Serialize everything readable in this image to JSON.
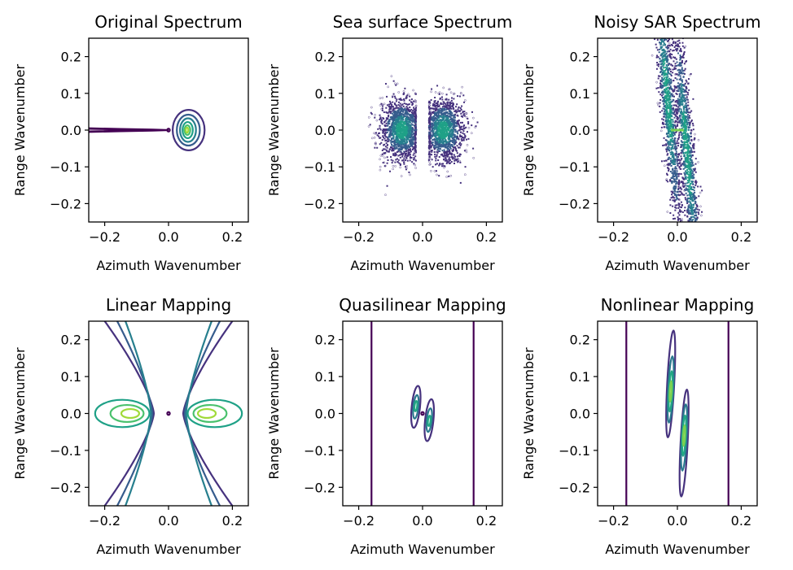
{
  "chart_data": [
    {
      "type": "heatmap",
      "title": "Original Spectrum",
      "xlabel": "Azimuth Wavenumber",
      "ylabel": "Range Wavenumber",
      "xlim": [
        -0.25,
        0.25
      ],
      "ylim": [
        -0.25,
        0.25
      ],
      "xticks": [
        "−0.2",
        "0.0",
        "0.2"
      ],
      "yticks": [
        "0.2",
        "0.1",
        "0.0",
        "−0.1",
        "−0.2"
      ],
      "render": "contour",
      "contours": [
        {
          "shape": "ellipse",
          "cx": 0.063,
          "cy": 0.0,
          "rx": 0.05,
          "ry": 0.055,
          "color": "#46327e"
        },
        {
          "shape": "ellipse",
          "cx": 0.062,
          "cy": 0.0,
          "rx": 0.036,
          "ry": 0.042,
          "color": "#365c8d"
        },
        {
          "shape": "ellipse",
          "cx": 0.061,
          "cy": 0.0,
          "rx": 0.025,
          "ry": 0.032,
          "color": "#277f8e"
        },
        {
          "shape": "ellipse",
          "cx": 0.06,
          "cy": 0.0,
          "rx": 0.016,
          "ry": 0.022,
          "color": "#1fa187"
        },
        {
          "shape": "ellipse",
          "cx": 0.059,
          "cy": 0.0,
          "rx": 0.009,
          "ry": 0.013,
          "color": "#4ac16d"
        },
        {
          "shape": "ellipse",
          "cx": 0.058,
          "cy": 0.0,
          "rx": 0.004,
          "ry": 0.007,
          "color": "#a0da39"
        },
        {
          "shape": "ellipse",
          "cx": 0.0,
          "cy": 0.0,
          "rx": 0.004,
          "ry": 0.004,
          "color": "#440154"
        },
        {
          "shape": "polyline",
          "points": [
            [
              -0.25,
              0.005
            ],
            [
              -0.15,
              0.003
            ],
            [
              -0.05,
              0.0015
            ],
            [
              0.0,
              0.0
            ],
            [
              -0.05,
              -0.0015
            ],
            [
              -0.15,
              -0.003
            ],
            [
              -0.25,
              -0.005
            ]
          ],
          "color": "#440154"
        },
        {
          "shape": "polyline",
          "points": [
            [
              -0.25,
              0.0035
            ],
            [
              -0.15,
              0.002
            ],
            [
              -0.07,
              0.001
            ],
            [
              -0.03,
              0.0
            ],
            [
              -0.07,
              -0.001
            ],
            [
              -0.15,
              -0.002
            ],
            [
              -0.25,
              -0.0035
            ]
          ],
          "color": "#440154"
        }
      ]
    },
    {
      "type": "scatter",
      "title": "Sea surface Spectrum",
      "xlabel": "Azimuth Wavenumber",
      "ylabel": "Range Wavenumber",
      "xlim": [
        -0.25,
        0.25
      ],
      "ylim": [
        -0.25,
        0.25
      ],
      "xticks": [
        "−0.2",
        "0.0",
        "0.2"
      ],
      "yticks": [
        "0.2",
        "0.1",
        "0.0",
        "−0.1",
        "−0.2"
      ],
      "render": "cloud",
      "clouds": [
        {
          "cx": -0.065,
          "cy": 0.0,
          "sx": 0.033,
          "sy": 0.042,
          "xmax": -0.02,
          "n": 1400
        },
        {
          "cx": 0.065,
          "cy": 0.0,
          "sx": 0.033,
          "sy": 0.042,
          "xmin": 0.02,
          "n": 1400
        }
      ]
    },
    {
      "type": "scatter",
      "title": "Noisy SAR Spectrum",
      "xlabel": "Azimuth Wavenumber",
      "ylabel": "Range Wavenumber",
      "xlim": [
        -0.25,
        0.25
      ],
      "ylim": [
        -0.25,
        0.25
      ],
      "xticks": [
        "−0.2",
        "0.0",
        "0.2"
      ],
      "yticks": [
        "0.2",
        "0.1",
        "0.0",
        "−0.1",
        "−0.2"
      ],
      "render": "cloud",
      "clouds": [
        {
          "cx": -0.03,
          "cy": 0.08,
          "sx": 0.012,
          "sy": 0.2,
          "slope": -0.1,
          "n": 1300
        },
        {
          "cx": 0.03,
          "cy": -0.06,
          "sx": 0.012,
          "sy": 0.2,
          "slope": -0.1,
          "n": 1300
        }
      ],
      "center_line": {
        "x": [
          -0.02,
          0.02
        ],
        "y": 0.0,
        "color": "#7ad151"
      }
    },
    {
      "type": "heatmap",
      "title": "Linear Mapping",
      "xlabel": "Azimuth Wavenumber",
      "ylabel": "Range Wavenumber",
      "xlim": [
        -0.25,
        0.25
      ],
      "ylim": [
        -0.25,
        0.25
      ],
      "xticks": [
        "−0.2",
        "0.0",
        "0.2"
      ],
      "yticks": [
        "0.2",
        "0.1",
        "0.0",
        "−0.1",
        "−0.2"
      ],
      "render": "contour",
      "contours": [
        {
          "shape": "hyperbola",
          "side": "both",
          "vx": 0.046,
          "a": 1.0,
          "color": "#46327e"
        },
        {
          "shape": "hyperbola",
          "side": "both",
          "vx": 0.05,
          "a": 0.72,
          "color": "#365c8d"
        },
        {
          "shape": "hyperbola",
          "side": "both",
          "vx": 0.055,
          "a": 0.52,
          "color": "#277f8e"
        },
        {
          "shape": "ellipse",
          "cx": -0.145,
          "cy": 0.0,
          "rx": 0.085,
          "ry": 0.037,
          "color": "#1fa187",
          "mirror": true
        },
        {
          "shape": "ellipse",
          "cx": -0.13,
          "cy": 0.0,
          "rx": 0.052,
          "ry": 0.023,
          "color": "#4ac16d",
          "mirror": true
        },
        {
          "shape": "ellipse",
          "cx": -0.12,
          "cy": 0.0,
          "rx": 0.028,
          "ry": 0.012,
          "color": "#a0da39",
          "mirror": true
        },
        {
          "shape": "ellipse",
          "cx": 0.0,
          "cy": 0.0,
          "rx": 0.004,
          "ry": 0.004,
          "color": "#440154"
        }
      ]
    },
    {
      "type": "heatmap",
      "title": "Quasilinear Mapping",
      "xlabel": "Azimuth Wavenumber",
      "ylabel": "Range Wavenumber",
      "xlim": [
        -0.25,
        0.25
      ],
      "ylim": [
        -0.25,
        0.25
      ],
      "xticks": [
        "−0.2",
        "0.0",
        "0.2"
      ],
      "yticks": [
        "0.2",
        "0.1",
        "0.0",
        "−0.1",
        "−0.2"
      ],
      "render": "contour",
      "contours": [
        {
          "shape": "vline",
          "x": -0.16,
          "color": "#440154"
        },
        {
          "shape": "vline",
          "x": 0.16,
          "color": "#440154"
        },
        {
          "shape": "ellipse",
          "cx": 0.0,
          "cy": 0.0,
          "rx": 0.004,
          "ry": 0.004,
          "color": "#440154"
        },
        {
          "shape": "ellipse",
          "cx": -0.021,
          "cy": 0.018,
          "rx": 0.013,
          "ry": 0.057,
          "rot": 6,
          "color": "#46327e"
        },
        {
          "shape": "ellipse",
          "cx": -0.021,
          "cy": 0.018,
          "rx": 0.008,
          "ry": 0.032,
          "rot": 6,
          "color": "#2a788e"
        },
        {
          "shape": "ellipse",
          "cx": -0.021,
          "cy": 0.02,
          "rx": 0.004,
          "ry": 0.014,
          "rot": 6,
          "color": "#22a884"
        },
        {
          "shape": "ellipse",
          "cx": 0.021,
          "cy": -0.018,
          "rx": 0.013,
          "ry": 0.057,
          "rot": 6,
          "color": "#46327e"
        },
        {
          "shape": "ellipse",
          "cx": 0.021,
          "cy": -0.018,
          "rx": 0.008,
          "ry": 0.032,
          "rot": 6,
          "color": "#2a788e"
        },
        {
          "shape": "ellipse",
          "cx": 0.021,
          "cy": -0.02,
          "rx": 0.004,
          "ry": 0.014,
          "rot": 6,
          "color": "#22a884"
        }
      ]
    },
    {
      "type": "heatmap",
      "title": "Nonlinear Mapping",
      "xlabel": "Azimuth Wavenumber",
      "ylabel": "Range Wavenumber",
      "xlim": [
        -0.25,
        0.25
      ],
      "ylim": [
        -0.25,
        0.25
      ],
      "xticks": [
        "−0.2",
        "0.0",
        "0.2"
      ],
      "yticks": [
        "0.2",
        "0.1",
        "0.0",
        "−0.1",
        "−0.2"
      ],
      "render": "contour",
      "contours": [
        {
          "shape": "vline",
          "x": -0.16,
          "color": "#440154"
        },
        {
          "shape": "vline",
          "x": 0.16,
          "color": "#440154"
        },
        {
          "shape": "ellipse",
          "cx": -0.021,
          "cy": 0.08,
          "rx": 0.011,
          "ry": 0.145,
          "rot": 3,
          "color": "#46327e"
        },
        {
          "shape": "ellipse",
          "cx": -0.021,
          "cy": 0.065,
          "rx": 0.008,
          "ry": 0.09,
          "rot": 3,
          "color": "#2a788e"
        },
        {
          "shape": "ellipse",
          "cx": -0.021,
          "cy": 0.06,
          "rx": 0.005,
          "ry": 0.055,
          "rot": 3,
          "color": "#22a884"
        },
        {
          "shape": "ellipse",
          "cx": -0.021,
          "cy": 0.06,
          "rx": 0.003,
          "ry": 0.028,
          "rot": 3,
          "color": "#7ad151"
        },
        {
          "shape": "ellipse",
          "cx": 0.021,
          "cy": -0.08,
          "rx": 0.011,
          "ry": 0.145,
          "rot": 3,
          "color": "#46327e"
        },
        {
          "shape": "ellipse",
          "cx": 0.021,
          "cy": -0.065,
          "rx": 0.008,
          "ry": 0.09,
          "rot": 3,
          "color": "#2a788e"
        },
        {
          "shape": "ellipse",
          "cx": 0.021,
          "cy": -0.06,
          "rx": 0.005,
          "ry": 0.055,
          "rot": 3,
          "color": "#22a884"
        },
        {
          "shape": "ellipse",
          "cx": 0.021,
          "cy": -0.06,
          "rx": 0.003,
          "ry": 0.028,
          "rot": 3,
          "color": "#7ad151"
        }
      ]
    }
  ]
}
